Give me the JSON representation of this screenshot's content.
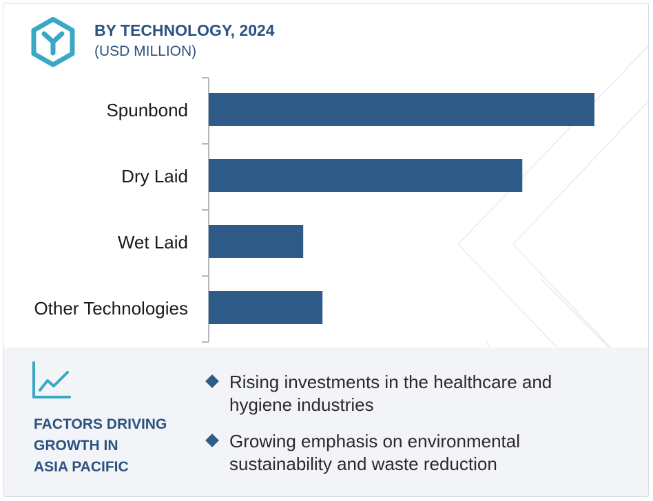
{
  "header": {
    "title": "BY TECHNOLOGY, 2024",
    "subtitle": "(USD MILLION)",
    "logo_icon": "hexagon-y-logo-icon"
  },
  "colors": {
    "bar": "#2e5b87",
    "heading": "#2c5282",
    "logo": "#3aa7c4",
    "footer_bg": "#f2f4f7"
  },
  "chart_data": {
    "type": "bar",
    "orientation": "horizontal",
    "categories": [
      "Spunbond",
      "Dry Laid",
      "Wet Laid",
      "Other Technologies"
    ],
    "values": [
      100,
      81.3,
      24.5,
      29.5
    ],
    "title": "BY TECHNOLOGY, 2024",
    "subtitle": "(USD MILLION)",
    "xlabel": "",
    "ylabel": "",
    "xlim": [
      0,
      100
    ],
    "grid": false,
    "legend": "none",
    "value_labels": false
  },
  "footer": {
    "icon": "line-chart-growth-icon",
    "heading_lines": [
      "FACTORS DRIVING",
      "GROWTH IN",
      "ASIA PACIFIC"
    ],
    "factors": [
      {
        "line1": "Rising investments in the healthcare and",
        "line2": "hygiene industries"
      },
      {
        "line1": "Growing emphasis on environmental",
        "line2": "sustainability and waste reduction"
      }
    ]
  }
}
